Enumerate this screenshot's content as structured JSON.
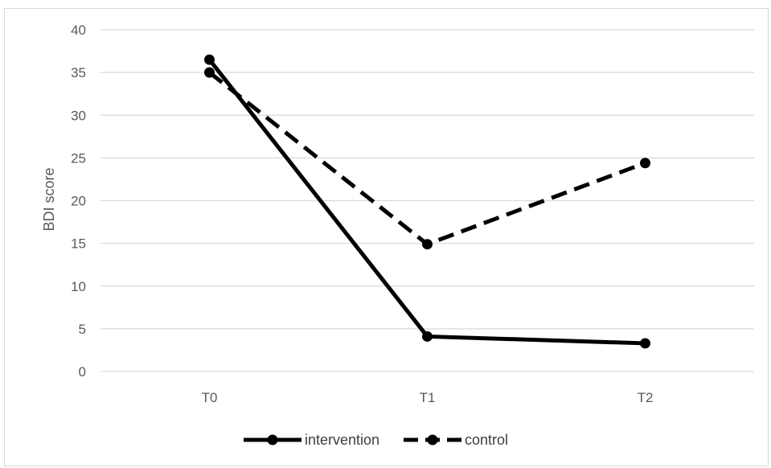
{
  "chart_data": {
    "type": "line",
    "title": "",
    "xlabel": "",
    "ylabel": "BDI score",
    "categories": [
      "T0",
      "T1",
      "T2"
    ],
    "ylim": [
      0,
      40
    ],
    "yticks": [
      0,
      5,
      10,
      15,
      20,
      25,
      30,
      35,
      40
    ],
    "grid": true,
    "legend_position": "bottom",
    "series": [
      {
        "name": "intervention",
        "values": [
          36.5,
          4.1,
          3.3
        ],
        "line_style": "solid",
        "color": "#000000"
      },
      {
        "name": "control",
        "values": [
          35.0,
          14.9,
          24.4
        ],
        "line_style": "dashed",
        "color": "#000000"
      }
    ]
  }
}
